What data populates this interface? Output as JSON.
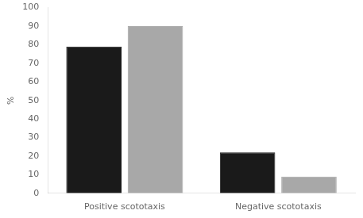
{
  "chart_data": {
    "type": "bar",
    "categories": [
      "Positive scototaxis",
      "Negative scototaxis"
    ],
    "series": [
      {
        "color": "#1a1a1a",
        "values": [
          79,
          22
        ]
      },
      {
        "color": "#a8a8a8",
        "values": [
          90,
          9
        ]
      }
    ],
    "ylabel": "%",
    "ylim": [
      0,
      100
    ],
    "yticks": [
      0,
      10,
      20,
      30,
      40,
      50,
      60,
      70,
      80,
      90,
      100
    ],
    "grid": false
  }
}
